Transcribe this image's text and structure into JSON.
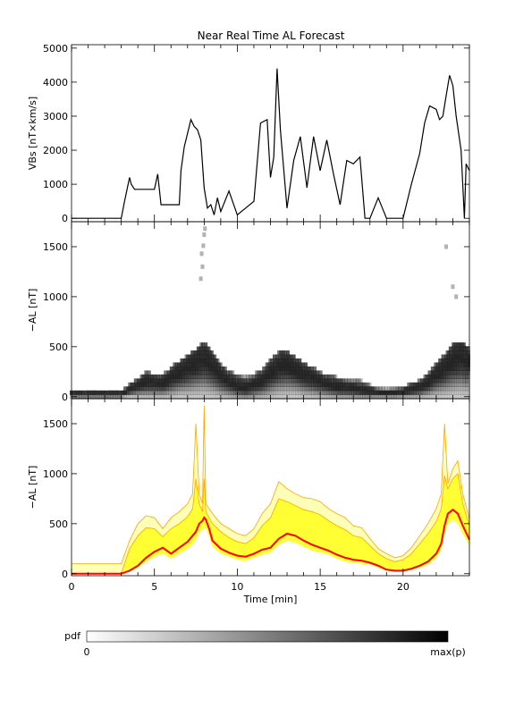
{
  "title": "Near Real Time AL Forecast",
  "colorbar": {
    "label": "pdf",
    "min_label": "0",
    "max_label": "max(p)"
  },
  "colors": {
    "cloud": "#222222",
    "band_fill": "#ffff33",
    "band_edge": "#ffa500",
    "median": "#ff0000",
    "axis": "#000000"
  },
  "chart_data": [
    {
      "type": "line",
      "panel": "VBs",
      "title": "Near Real Time AL Forecast",
      "xlabel": "",
      "ylabel": "VBs [nT×km/s]",
      "xlim": [
        0,
        24
      ],
      "ylim": [
        -100,
        5100
      ],
      "yticks": [
        0,
        1000,
        2000,
        3000,
        4000,
        5000
      ],
      "x": [
        0,
        3.0,
        3.2,
        3.5,
        3.6,
        3.8,
        4.5,
        5.0,
        5.2,
        5.4,
        6.5,
        6.6,
        6.8,
        7.0,
        7.2,
        7.4,
        7.6,
        7.8,
        8.0,
        8.2,
        8.4,
        8.6,
        8.8,
        9.0,
        9.5,
        10.0,
        10.5,
        11.0,
        11.4,
        11.8,
        12.0,
        12.2,
        12.4,
        12.6,
        13.0,
        13.4,
        13.8,
        14.2,
        14.6,
        15.0,
        15.4,
        15.8,
        16.2,
        16.6,
        17.0,
        17.4,
        17.7,
        17.9,
        18.0,
        18.5,
        19.0,
        19.2,
        19.5,
        20.0,
        20.5,
        21.0,
        21.3,
        21.6,
        22.0,
        22.2,
        22.4,
        22.6,
        22.8,
        23.0,
        23.2,
        23.5,
        23.7,
        23.8,
        24.0
      ],
      "values": [
        0,
        0,
        500,
        1200,
        1000,
        850,
        850,
        850,
        1300,
        400,
        400,
        1400,
        2100,
        2500,
        2900,
        2700,
        2600,
        2300,
        900,
        300,
        400,
        100,
        600,
        200,
        800,
        100,
        300,
        500,
        2800,
        2900,
        1200,
        1800,
        4400,
        2600,
        300,
        1700,
        2400,
        900,
        2400,
        1400,
        2300,
        1300,
        400,
        1700,
        1600,
        1800,
        0,
        0,
        0,
        600,
        0,
        0,
        0,
        0,
        1000,
        1900,
        2800,
        3300,
        3200,
        2900,
        3000,
        3600,
        4200,
        3900,
        3000,
        2000,
        0,
        1600,
        1400
      ]
    },
    {
      "type": "heatmap",
      "panel": "AL pdf",
      "xlabel": "",
      "ylabel": "−AL [nT]",
      "xlim": [
        0,
        24
      ],
      "ylim": [
        -20,
        1750
      ],
      "yticks": [
        0,
        500,
        1000,
        1500
      ],
      "x": [
        0,
        1,
        2,
        3,
        3.5,
        4,
        4.5,
        5,
        5.5,
        6,
        6.5,
        7,
        7.5,
        8,
        8.5,
        9,
        9.5,
        10,
        10.5,
        11,
        11.5,
        12,
        12.5,
        13,
        13.5,
        14,
        14.5,
        15,
        15.5,
        16,
        16.5,
        17,
        17.5,
        18,
        18.5,
        19,
        19.5,
        20,
        20.5,
        21,
        21.5,
        22,
        22.5,
        23,
        23.5,
        24
      ],
      "center": [
        30,
        30,
        30,
        30,
        80,
        120,
        160,
        150,
        140,
        200,
        250,
        300,
        350,
        400,
        320,
        220,
        160,
        120,
        100,
        130,
        170,
        250,
        320,
        330,
        290,
        240,
        200,
        160,
        130,
        110,
        100,
        90,
        80,
        60,
        45,
        40,
        40,
        55,
        80,
        100,
        150,
        230,
        300,
        380,
        420,
        350
      ],
      "spread": [
        60,
        60,
        60,
        60,
        120,
        180,
        250,
        230,
        220,
        300,
        350,
        420,
        480,
        550,
        450,
        330,
        260,
        220,
        200,
        230,
        280,
        380,
        450,
        450,
        400,
        350,
        300,
        250,
        220,
        200,
        180,
        170,
        160,
        120,
        90,
        80,
        80,
        100,
        140,
        170,
        230,
        330,
        420,
        520,
        560,
        480
      ]
    },
    {
      "type": "area",
      "panel": "AL forecast band",
      "xlabel": "Time [min]",
      "ylabel": "−AL [nT]",
      "xlim": [
        0,
        24
      ],
      "ylim": [
        -20,
        1750
      ],
      "xticks": [
        0,
        5,
        10,
        15,
        20
      ],
      "yticks": [
        0,
        500,
        1000,
        1500
      ],
      "x": [
        0,
        1,
        2,
        3,
        3.5,
        4,
        4.5,
        5,
        5.5,
        6,
        6.5,
        7,
        7.3,
        7.5,
        7.7,
        7.9,
        8.0,
        8.1,
        8.3,
        8.5,
        9,
        9.5,
        10,
        10.5,
        11,
        11.5,
        12,
        12.5,
        13,
        13.5,
        14,
        14.5,
        15,
        15.5,
        16,
        16.5,
        17,
        17.5,
        18,
        18.5,
        19,
        19.5,
        20,
        20.5,
        21,
        21.5,
        22,
        22.3,
        22.5,
        22.7,
        23,
        23.3,
        23.6,
        24
      ],
      "upper_env": [
        100,
        100,
        100,
        100,
        330,
        500,
        580,
        560,
        450,
        560,
        620,
        700,
        800,
        1500,
        800,
        700,
        1680,
        700,
        650,
        600,
        500,
        450,
        400,
        380,
        450,
        600,
        700,
        920,
        850,
        800,
        760,
        750,
        720,
        650,
        600,
        560,
        480,
        460,
        350,
        250,
        200,
        160,
        180,
        260,
        380,
        500,
        650,
        800,
        1500,
        900,
        1050,
        1130,
        800,
        550
      ],
      "upper": [
        0,
        0,
        0,
        0,
        250,
        380,
        460,
        450,
        370,
        450,
        500,
        570,
        650,
        950,
        700,
        620,
        950,
        620,
        560,
        500,
        420,
        360,
        320,
        300,
        360,
        480,
        560,
        750,
        720,
        680,
        640,
        620,
        590,
        530,
        480,
        440,
        380,
        360,
        280,
        200,
        150,
        120,
        140,
        200,
        300,
        400,
        520,
        650,
        980,
        850,
        950,
        1000,
        700,
        480
      ],
      "median": [
        0,
        0,
        0,
        0,
        30,
        80,
        160,
        220,
        260,
        200,
        260,
        320,
        380,
        420,
        500,
        530,
        560,
        540,
        450,
        330,
        250,
        210,
        180,
        170,
        200,
        240,
        260,
        350,
        400,
        380,
        330,
        290,
        260,
        230,
        190,
        160,
        140,
        130,
        110,
        80,
        40,
        30,
        30,
        50,
        80,
        120,
        200,
        300,
        480,
        600,
        640,
        600,
        480,
        340
      ],
      "lower": [
        0,
        0,
        0,
        0,
        20,
        60,
        120,
        170,
        200,
        150,
        200,
        250,
        300,
        340,
        410,
        440,
        460,
        450,
        370,
        270,
        200,
        170,
        140,
        130,
        160,
        190,
        210,
        290,
        330,
        310,
        270,
        230,
        210,
        190,
        150,
        120,
        110,
        100,
        90,
        60,
        30,
        20,
        20,
        35,
        60,
        90,
        160,
        240,
        400,
        500,
        540,
        500,
        400,
        280
      ]
    }
  ]
}
